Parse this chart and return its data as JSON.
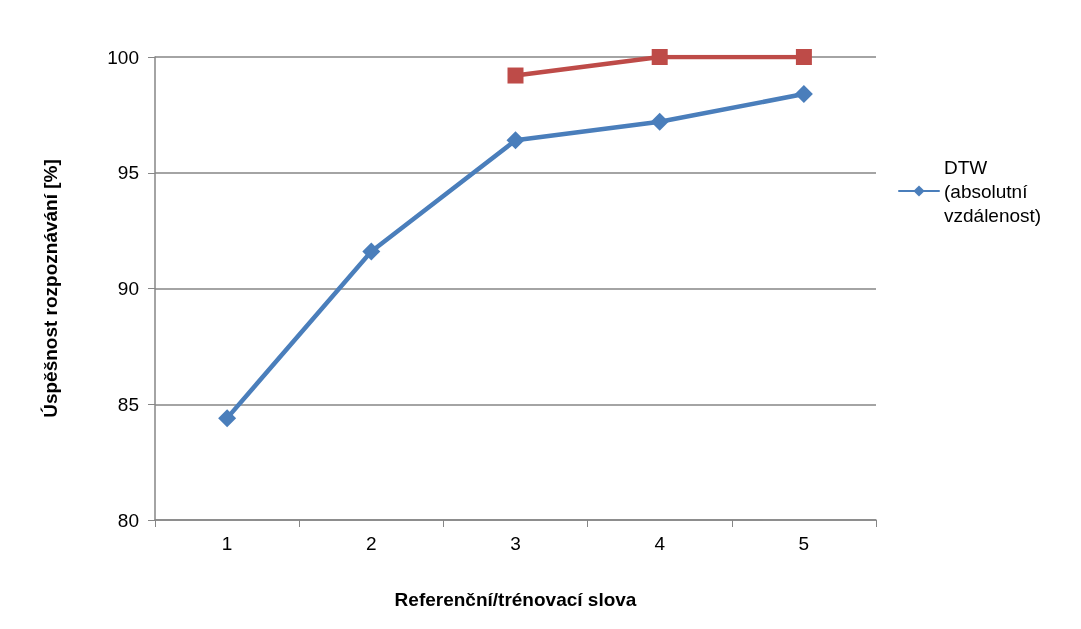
{
  "chart_data": {
    "type": "line",
    "xlabel": "Referenční/trénovací slova",
    "ylabel": "Úspěšnost rozpoznávání [%]",
    "categories": [
      "1",
      "2",
      "3",
      "4",
      "5"
    ],
    "series": [
      {
        "name": "DTW (absolutní vzdálenost)",
        "color": "#4a7ebb",
        "marker": "diamond",
        "values": [
          84.4,
          91.6,
          96.4,
          97.2,
          98.4
        ]
      },
      {
        "color": "#be4b48",
        "marker": "square",
        "values": [
          null,
          null,
          99.2,
          100,
          100
        ]
      }
    ],
    "ylim": [
      80,
      100
    ],
    "yticks": [
      80,
      85,
      90,
      95,
      100
    ],
    "grid": "y",
    "legend": "right",
    "line_style": "solid"
  }
}
